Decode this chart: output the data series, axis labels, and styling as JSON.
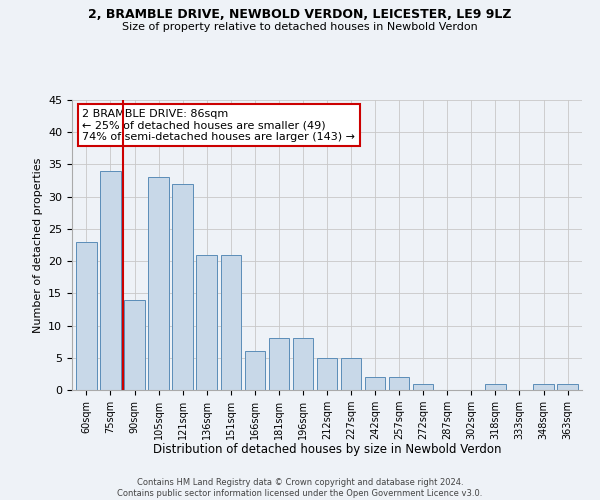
{
  "title": "2, BRAMBLE DRIVE, NEWBOLD VERDON, LEICESTER, LE9 9LZ",
  "subtitle": "Size of property relative to detached houses in Newbold Verdon",
  "xlabel": "Distribution of detached houses by size in Newbold Verdon",
  "ylabel": "Number of detached properties",
  "categories": [
    "60sqm",
    "75sqm",
    "90sqm",
    "105sqm",
    "121sqm",
    "136sqm",
    "151sqm",
    "166sqm",
    "181sqm",
    "196sqm",
    "212sqm",
    "227sqm",
    "242sqm",
    "257sqm",
    "272sqm",
    "287sqm",
    "302sqm",
    "318sqm",
    "333sqm",
    "348sqm",
    "363sqm"
  ],
  "values": [
    23,
    34,
    14,
    33,
    32,
    21,
    21,
    6,
    8,
    8,
    5,
    5,
    2,
    2,
    1,
    0,
    0,
    1,
    0,
    1,
    1
  ],
  "bar_color": "#c8d8e8",
  "bar_edge_color": "#5b8db8",
  "annotation_text": "2 BRAMBLE DRIVE: 86sqm\n← 25% of detached houses are smaller (49)\n74% of semi-detached houses are larger (143) →",
  "annotation_box_color": "#ffffff",
  "annotation_box_edge": "#cc0000",
  "property_line_color": "#cc0000",
  "footer": "Contains HM Land Registry data © Crown copyright and database right 2024.\nContains public sector information licensed under the Open Government Licence v3.0.",
  "ylim": [
    0,
    45
  ],
  "yticks": [
    0,
    5,
    10,
    15,
    20,
    25,
    30,
    35,
    40,
    45
  ],
  "bg_color": "#eef2f7",
  "grid_color": "#c8c8c8"
}
